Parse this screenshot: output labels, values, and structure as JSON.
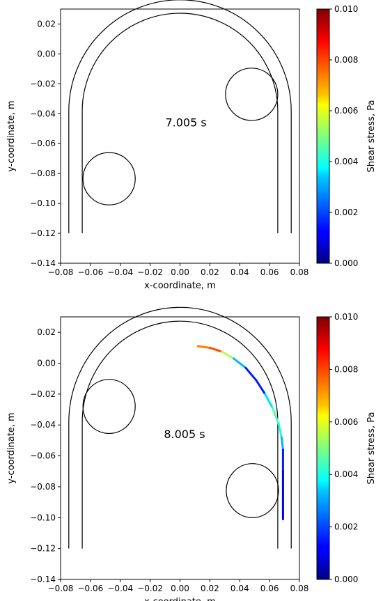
{
  "chart_data": [
    {
      "type": "line",
      "annotation": "7.005 s",
      "xlabel": "x-coordinate, m",
      "ylabel": "y-coordinate, m",
      "xlim": [
        -0.08,
        0.08
      ],
      "ylim": [
        -0.14,
        0.03
      ],
      "xticks": [
        "−0.08",
        "−0.06",
        "−0.04",
        "−0.02",
        "0.00",
        "0.02",
        "0.04",
        "0.06",
        "0.08"
      ],
      "yticks": [
        "0.02",
        "0.00",
        "−0.02",
        "−0.04",
        "−0.06",
        "−0.08",
        "−0.10",
        "−0.12",
        "−0.14"
      ],
      "tube": {
        "center_x": 0.0,
        "center_y": -0.0383,
        "outer_radius": 0.0745,
        "inner_radius": 0.0655,
        "bottom_y": -0.12
      },
      "circles": [
        {
          "x": -0.0475,
          "y": -0.0835,
          "r": 0.0175
        },
        {
          "x": 0.048,
          "y": -0.027,
          "r": 0.0175
        }
      ],
      "filament": [],
      "colorbar": {
        "label": "Shear stress, Pa",
        "min": 0.0,
        "max": 0.01,
        "ticks": [
          "0.000",
          "0.002",
          "0.004",
          "0.006",
          "0.008",
          "0.010"
        ]
      }
    },
    {
      "type": "line",
      "annotation": "8.005 s",
      "xlabel": "x-coordinate, m",
      "ylabel": "y-coordinate, m",
      "xlim": [
        -0.08,
        0.08
      ],
      "ylim": [
        -0.14,
        0.03
      ],
      "xticks": [
        "−0.08",
        "−0.06",
        "−0.04",
        "−0.02",
        "0.00",
        "0.02",
        "0.04",
        "0.06",
        "0.08"
      ],
      "yticks": [
        "0.02",
        "0.00",
        "−0.02",
        "−0.04",
        "−0.06",
        "−0.08",
        "−0.10",
        "−0.12",
        "−0.14"
      ],
      "tube": {
        "center_x": 0.0,
        "center_y": -0.0383,
        "outer_radius": 0.0745,
        "inner_radius": 0.0655,
        "bottom_y": -0.12
      },
      "circles": [
        {
          "x": -0.0475,
          "y": -0.028,
          "r": 0.0175
        },
        {
          "x": 0.0485,
          "y": -0.0825,
          "r": 0.0175
        }
      ],
      "filament": [
        {
          "x": 0.012,
          "y": 0.011,
          "v": 0.006
        },
        {
          "x": 0.02,
          "y": 0.01,
          "v": 0.009
        },
        {
          "x": 0.028,
          "y": 0.0075,
          "v": 0.007
        },
        {
          "x": 0.036,
          "y": 0.003,
          "v": 0.004
        },
        {
          "x": 0.044,
          "y": -0.003,
          "v": 0.002
        },
        {
          "x": 0.051,
          "y": -0.011,
          "v": 0.001
        },
        {
          "x": 0.057,
          "y": -0.02,
          "v": 0.002
        },
        {
          "x": 0.062,
          "y": -0.029,
          "v": 0.005
        },
        {
          "x": 0.066,
          "y": -0.039,
          "v": 0.004
        },
        {
          "x": 0.068,
          "y": -0.048,
          "v": 0.004
        },
        {
          "x": 0.069,
          "y": -0.056,
          "v": 0.002
        },
        {
          "x": 0.069,
          "y": -0.07,
          "v": 0.001
        },
        {
          "x": 0.069,
          "y": -0.085,
          "v": 0.001
        },
        {
          "x": 0.069,
          "y": -0.101,
          "v": 0.001
        }
      ],
      "colorbar": {
        "label": "Shear stress, Pa",
        "min": 0.0,
        "max": 0.01,
        "ticks": [
          "0.000",
          "0.002",
          "0.004",
          "0.006",
          "0.008",
          "0.010"
        ]
      }
    }
  ]
}
